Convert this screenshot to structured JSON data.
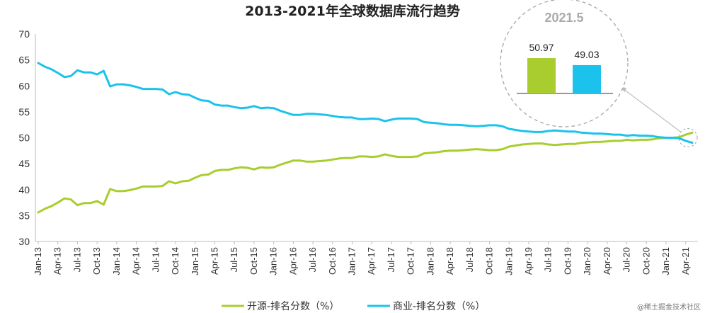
{
  "chart_data": {
    "type": "line",
    "title": "2013-2021年全球数据库流行趋势",
    "ylim": [
      30,
      70
    ],
    "yticks": [
      30,
      35,
      40,
      45,
      50,
      55,
      60,
      65,
      70
    ],
    "x_tick_labels": [
      "Jan-13",
      "Apr-13",
      "Jul-13",
      "Oct-13",
      "Jan-14",
      "Apr-14",
      "Jul-14",
      "Oct-14",
      "Jan-15",
      "Apr-15",
      "Jul-15",
      "Oct-15",
      "Jan-16",
      "Apr-16",
      "Jul-16",
      "Oct-16",
      "Jan-17",
      "Apr-17",
      "Jul-17",
      "Oct-17",
      "Jan-18",
      "Apr-18",
      "Jul-18",
      "Oct-18",
      "Jan-19",
      "Apr-19",
      "Jul-19",
      "Oct-19",
      "Jan-20",
      "Apr-20",
      "Jul-20",
      "Oct-20",
      "Jan-21",
      "Apr-21"
    ],
    "x_start": "Jan-13",
    "x_end": "May-21",
    "grid": false,
    "legend_position": "bottom",
    "series": [
      {
        "name": "开源-排名分数（%）",
        "color": "#a9cd2e",
        "values": [
          35.6,
          36.3,
          36.8,
          37.5,
          38.3,
          38.1,
          37.0,
          37.4,
          37.4,
          37.8,
          37.1,
          40.1,
          39.7,
          39.7,
          39.9,
          40.2,
          40.6,
          40.6,
          40.6,
          40.7,
          41.6,
          41.2,
          41.6,
          41.7,
          42.3,
          42.8,
          42.9,
          43.6,
          43.8,
          43.8,
          44.1,
          44.3,
          44.2,
          43.9,
          44.3,
          44.2,
          44.3,
          44.8,
          45.2,
          45.6,
          45.6,
          45.4,
          45.4,
          45.5,
          45.6,
          45.8,
          46.0,
          46.1,
          46.1,
          46.4,
          46.4,
          46.3,
          46.4,
          46.8,
          46.5,
          46.3,
          46.3,
          46.3,
          46.4,
          47.0,
          47.1,
          47.2,
          47.4,
          47.5,
          47.5,
          47.6,
          47.7,
          47.8,
          47.7,
          47.6,
          47.6,
          47.8,
          48.3,
          48.5,
          48.7,
          48.8,
          48.9,
          48.9,
          48.7,
          48.6,
          48.7,
          48.8,
          48.8,
          49.0,
          49.1,
          49.2,
          49.2,
          49.3,
          49.4,
          49.4,
          49.6,
          49.5,
          49.6,
          49.6,
          49.7,
          49.9,
          50.0,
          50.0,
          50.1,
          50.6,
          50.97
        ]
      },
      {
        "name": "商业-排名分数（%）",
        "color": "#1bc3ec",
        "values": [
          64.4,
          63.7,
          63.2,
          62.5,
          61.7,
          61.9,
          63.0,
          62.6,
          62.6,
          62.2,
          62.9,
          59.9,
          60.3,
          60.3,
          60.1,
          59.8,
          59.4,
          59.4,
          59.4,
          59.3,
          58.4,
          58.8,
          58.4,
          58.3,
          57.7,
          57.2,
          57.1,
          56.4,
          56.2,
          56.2,
          55.9,
          55.7,
          55.8,
          56.1,
          55.7,
          55.8,
          55.7,
          55.2,
          54.8,
          54.4,
          54.4,
          54.6,
          54.6,
          54.5,
          54.4,
          54.2,
          54.0,
          53.9,
          53.9,
          53.6,
          53.6,
          53.7,
          53.6,
          53.2,
          53.5,
          53.7,
          53.7,
          53.7,
          53.6,
          53.0,
          52.9,
          52.8,
          52.6,
          52.5,
          52.5,
          52.4,
          52.3,
          52.2,
          52.3,
          52.4,
          52.4,
          52.2,
          51.7,
          51.5,
          51.3,
          51.2,
          51.1,
          51.1,
          51.3,
          51.4,
          51.3,
          51.2,
          51.2,
          51.0,
          50.9,
          50.8,
          50.8,
          50.7,
          50.6,
          50.6,
          50.4,
          50.5,
          50.4,
          50.4,
          50.3,
          50.1,
          50.0,
          50.0,
          49.9,
          49.4,
          49.03
        ]
      }
    ],
    "inset": {
      "title": "2021.5",
      "bars": [
        {
          "name": "开源",
          "value": 50.97,
          "label": "50.97",
          "color": "#a9cd2e"
        },
        {
          "name": "商业",
          "value": 49.03,
          "label": "49.03",
          "color": "#1bc3ec"
        }
      ]
    }
  },
  "watermark": "@稀土掘金技术社区"
}
